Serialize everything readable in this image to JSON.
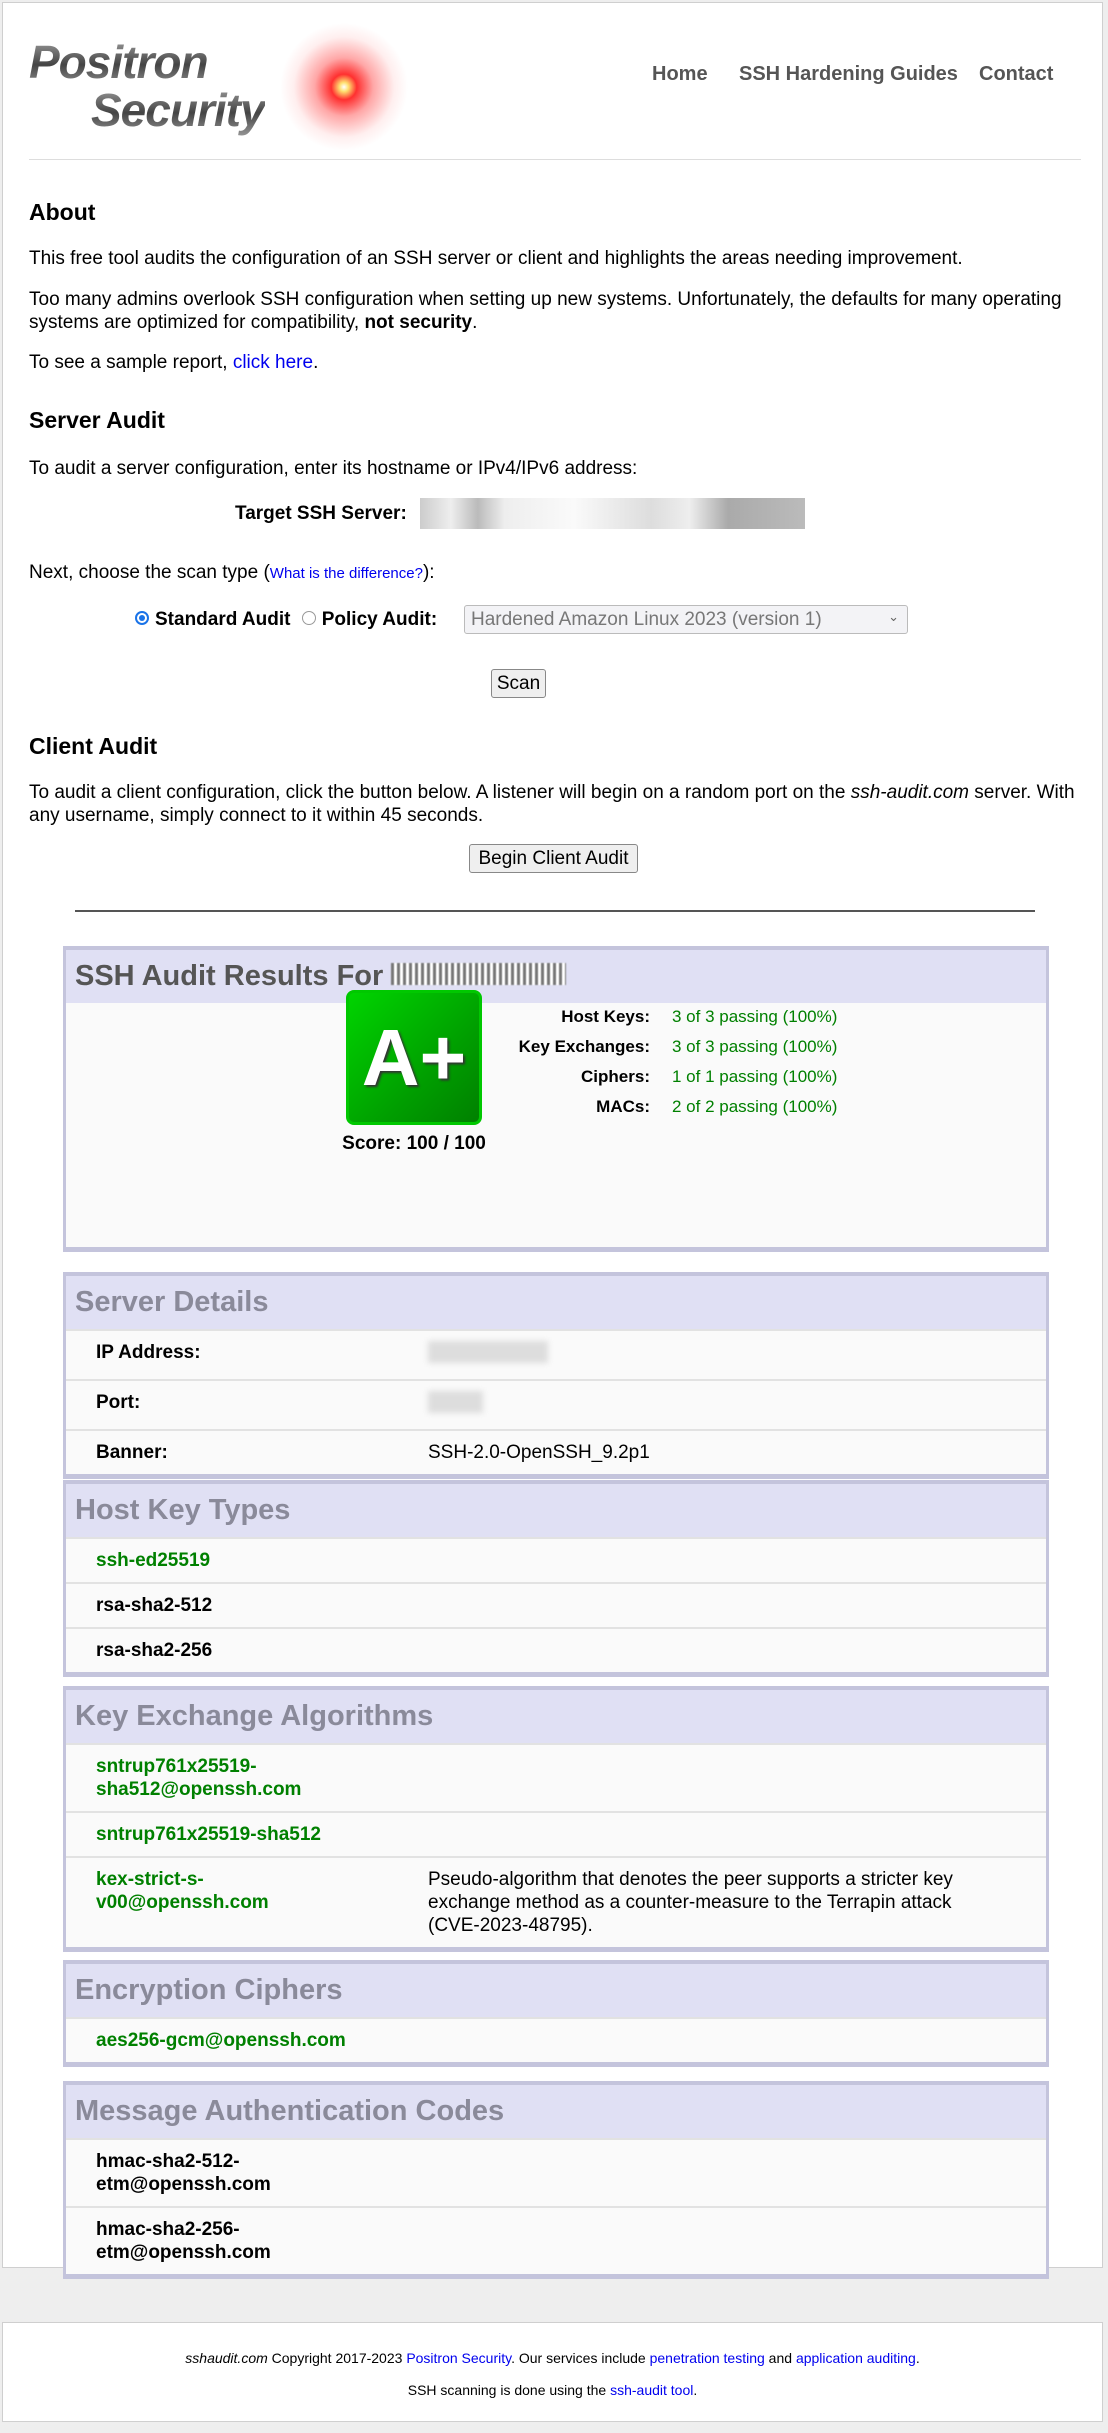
{
  "logo": {
    "line1": "Positron",
    "line2": "Security"
  },
  "nav": [
    "Home",
    "SSH Hardening Guides",
    "Contact"
  ],
  "about": {
    "heading": "About",
    "p1": "This free tool audits the configuration of an SSH server or client and highlights the areas needing improvement.",
    "p2": "Too many admins overlook SSH configuration when setting up new systems. Unfortunately, the defaults for many operating systems are optimized for compatibility, ",
    "p2_bold": "not security",
    "p2_end": ".",
    "p3": "To see a sample report, ",
    "p3_link": "click here",
    "p3_end": "."
  },
  "server_audit": {
    "heading": "Server Audit",
    "intro": "To audit a server configuration, enter its hostname or IPv4/IPv6 address:",
    "target_label": "Target SSH Server:",
    "scan_type_text": "Next, choose the scan type (",
    "scan_type_link": "What is the difference?",
    "scan_type_end": "):",
    "standard_label": "Standard Audit",
    "policy_label": "Policy Audit:",
    "policy_selected": "Hardened Amazon Linux 2023 (version 1)",
    "scan_button": "Scan"
  },
  "client_audit": {
    "heading": "Client Audit",
    "text1": "To audit a client configuration, click the button below. A listener will begin on a random port on the ",
    "text_italic": "ssh-audit.com",
    "text2": " server. With any username, simply connect to it within 45 seconds.",
    "button": "Begin Client Audit"
  },
  "results": {
    "title": "SSH Audit Results For",
    "grade": "A+",
    "score": "Score: 100 / 100",
    "stats": [
      {
        "label": "Host Keys:",
        "value": "3 of 3 passing (100%)"
      },
      {
        "label": "Key Exchanges:",
        "value": "3 of 3 passing (100%)"
      },
      {
        "label": "Ciphers:",
        "value": "1 of 1 passing (100%)"
      },
      {
        "label": "MACs:",
        "value": "2 of 2 passing (100%)"
      }
    ]
  },
  "server_details": {
    "title": "Server Details",
    "ip_label": "IP Address:",
    "port_label": "Port:",
    "banner_label": "Banner:",
    "banner": "SSH-2.0-OpenSSH_9.2p1"
  },
  "host_keys": {
    "title": "Host Key Types",
    "items": [
      "ssh-ed25519",
      "rsa-sha2-512",
      "rsa-sha2-256"
    ]
  },
  "kex": {
    "title": "Key Exchange Algorithms",
    "items": [
      "sntrup761x25519-sha512@openssh.com",
      "sntrup761x25519-sha512",
      "kex-strict-s-v00@openssh.com"
    ],
    "note": "Pseudo-algorithm that denotes the peer supports a stricter key exchange method as a counter-measure to the Terrapin attack (CVE-2023-48795)."
  },
  "ciphers": {
    "title": "Encryption Ciphers",
    "items": [
      "aes256-gcm@openssh.com"
    ]
  },
  "macs": {
    "title": "Message Authentication Codes",
    "items": [
      "hmac-sha2-512-etm@openssh.com",
      "hmac-sha2-256-etm@openssh.com"
    ]
  },
  "footer": {
    "site": "sshaudit.com",
    "copyright": " Copyright 2017-2023 ",
    "company": "Positron Security",
    "services": ". Our services include ",
    "pentest": "penetration testing",
    "and": " and ",
    "appaudit": "application auditing",
    "end": ".",
    "line2": "SSH scanning is done using the ",
    "tool": "ssh-audit tool",
    "line2_end": "."
  },
  "colors": {
    "pass": "#008000",
    "link": "#0000ee",
    "box_header": "#e0e0f4",
    "box_border": "#c4c4dc"
  }
}
